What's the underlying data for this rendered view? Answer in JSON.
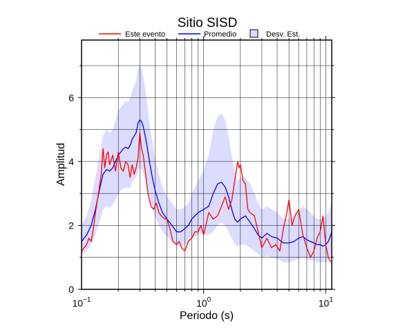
{
  "chart_data": {
    "type": "line",
    "title": "Sitio SISD",
    "xlabel": "Periodo (s)",
    "ylabel": "Amplitud",
    "x_scale": "log",
    "xlim": [
      0.1,
      11.2
    ],
    "ylim": [
      0,
      7.8
    ],
    "x_ticks": [
      {
        "value": 0.1,
        "base": "10",
        "exp": "−1"
      },
      {
        "value": 1,
        "base": "10",
        "exp": "0"
      },
      {
        "value": 10,
        "base": "10",
        "exp": "1"
      }
    ],
    "y_ticks": [
      0,
      2,
      4,
      6
    ],
    "grid": true,
    "legend": {
      "position": "top",
      "entries": [
        {
          "label": "Este evento",
          "color": "#ff0000",
          "kind": "line"
        },
        {
          "label": "Promedio",
          "color": "#0000ff",
          "kind": "line"
        },
        {
          "label": "Desv. Est.",
          "color": "#dcdcff",
          "kind": "box"
        }
      ]
    },
    "series": [
      {
        "name": "Este evento",
        "color": "#ff0000",
        "x": [
          0.1,
          0.105,
          0.11,
          0.115,
          0.12,
          0.125,
          0.13,
          0.135,
          0.14,
          0.145,
          0.15,
          0.155,
          0.16,
          0.165,
          0.17,
          0.18,
          0.19,
          0.2,
          0.21,
          0.22,
          0.23,
          0.24,
          0.25,
          0.26,
          0.27,
          0.28,
          0.29,
          0.3,
          0.31,
          0.32,
          0.33,
          0.35,
          0.37,
          0.39,
          0.41,
          0.43,
          0.45,
          0.48,
          0.5,
          0.53,
          0.56,
          0.6,
          0.63,
          0.66,
          0.7,
          0.75,
          0.8,
          0.85,
          0.9,
          0.95,
          1.0,
          1.1,
          1.2,
          1.3,
          1.4,
          1.5,
          1.6,
          1.7,
          1.8,
          1.9,
          1.95,
          2.0,
          2.1,
          2.2,
          2.3,
          2.4,
          2.6,
          2.8,
          3.0,
          3.3,
          3.6,
          3.9,
          4.2,
          4.5,
          4.8,
          5.0,
          5.3,
          5.6,
          6.0,
          6.5,
          7.0,
          7.5,
          8.0,
          8.5,
          9.0,
          9.5,
          10.0,
          10.5,
          11.0
        ],
        "y": [
          1.2,
          1.3,
          1.4,
          1.6,
          1.5,
          1.9,
          2.4,
          2.8,
          3.2,
          3.6,
          4.4,
          3.8,
          4.2,
          4.3,
          3.9,
          4.2,
          3.7,
          4.3,
          3.8,
          3.7,
          4.0,
          3.9,
          3.5,
          3.9,
          3.6,
          3.8,
          4.1,
          4.9,
          4.4,
          4.2,
          3.8,
          3.0,
          2.6,
          2.5,
          2.7,
          2.4,
          2.3,
          2.2,
          2.2,
          1.9,
          1.5,
          1.4,
          1.5,
          1.3,
          1.2,
          1.5,
          1.6,
          1.8,
          1.8,
          2.0,
          1.7,
          2.4,
          2.2,
          2.3,
          2.6,
          2.9,
          2.5,
          2.8,
          3.4,
          4.0,
          3.8,
          3.9,
          3.4,
          3.3,
          2.5,
          2.4,
          2.3,
          1.8,
          1.3,
          1.6,
          1.3,
          1.4,
          1.2,
          1.9,
          2.4,
          2.8,
          2.0,
          2.3,
          2.5,
          1.7,
          1.3,
          1.0,
          1.2,
          1.6,
          1.8,
          2.3,
          1.4,
          1.0,
          0.85
        ]
      },
      {
        "name": "Promedio",
        "color": "#0000ff",
        "x": [
          0.1,
          0.11,
          0.12,
          0.13,
          0.14,
          0.15,
          0.16,
          0.17,
          0.18,
          0.19,
          0.2,
          0.21,
          0.22,
          0.23,
          0.24,
          0.25,
          0.26,
          0.27,
          0.28,
          0.29,
          0.3,
          0.31,
          0.32,
          0.34,
          0.36,
          0.38,
          0.4,
          0.43,
          0.46,
          0.5,
          0.55,
          0.6,
          0.65,
          0.7,
          0.75,
          0.8,
          0.85,
          0.9,
          1.0,
          1.1,
          1.2,
          1.3,
          1.4,
          1.5,
          1.6,
          1.7,
          1.8,
          1.9,
          2.0,
          2.2,
          2.4,
          2.6,
          2.8,
          3.0,
          3.3,
          3.6,
          4.0,
          4.5,
          5.0,
          5.5,
          6.0,
          6.5,
          7.0,
          7.5,
          8.0,
          8.5,
          9.0,
          9.5,
          10.0,
          10.5,
          11.0,
          11.2
        ],
        "y": [
          1.5,
          1.7,
          2.0,
          2.5,
          3.1,
          3.6,
          3.75,
          3.7,
          3.8,
          4.0,
          4.2,
          4.3,
          4.4,
          4.45,
          4.4,
          4.5,
          4.7,
          4.8,
          4.9,
          5.2,
          5.3,
          5.25,
          5.1,
          4.6,
          4.0,
          3.5,
          3.1,
          2.7,
          2.4,
          2.2,
          2.0,
          1.8,
          1.8,
          1.9,
          2.0,
          2.2,
          2.3,
          2.4,
          2.5,
          2.6,
          3.0,
          3.3,
          3.35,
          3.2,
          2.9,
          2.5,
          2.2,
          2.1,
          2.2,
          2.3,
          2.1,
          1.9,
          1.7,
          1.6,
          1.75,
          1.65,
          1.6,
          1.45,
          1.45,
          1.5,
          1.6,
          1.65,
          1.55,
          1.5,
          1.45,
          1.4,
          1.4,
          1.35,
          1.4,
          1.5,
          1.7,
          1.8
        ]
      },
      {
        "name": "Desv. Est.",
        "color": "#dcdcff",
        "x": [
          0.1,
          0.11,
          0.12,
          0.13,
          0.14,
          0.15,
          0.16,
          0.17,
          0.18,
          0.19,
          0.2,
          0.21,
          0.22,
          0.23,
          0.24,
          0.25,
          0.26,
          0.27,
          0.28,
          0.29,
          0.3,
          0.31,
          0.32,
          0.34,
          0.36,
          0.38,
          0.4,
          0.43,
          0.46,
          0.5,
          0.55,
          0.6,
          0.65,
          0.7,
          0.75,
          0.8,
          0.85,
          0.9,
          1.0,
          1.1,
          1.2,
          1.3,
          1.4,
          1.5,
          1.6,
          1.7,
          1.8,
          1.9,
          2.0,
          2.2,
          2.4,
          2.6,
          2.8,
          3.0,
          3.3,
          3.6,
          4.0,
          4.5,
          5.0,
          5.5,
          6.0,
          6.5,
          7.0,
          7.5,
          8.0,
          8.5,
          9.0,
          9.5,
          10.0,
          10.5,
          11.0,
          11.2
        ],
        "upper": [
          2.0,
          2.3,
          2.8,
          3.5,
          4.2,
          4.8,
          5.0,
          4.9,
          5.0,
          5.3,
          5.6,
          5.7,
          5.8,
          5.9,
          5.85,
          6.0,
          6.2,
          6.4,
          6.5,
          6.9,
          7.0,
          6.9,
          6.7,
          6.0,
          5.2,
          4.6,
          4.1,
          3.6,
          3.2,
          2.9,
          2.7,
          2.5,
          2.5,
          2.6,
          2.7,
          3.0,
          3.2,
          3.4,
          3.7,
          4.2,
          5.0,
          5.4,
          5.5,
          5.3,
          4.8,
          4.2,
          3.7,
          3.4,
          3.5,
          3.5,
          3.3,
          3.0,
          2.7,
          2.5,
          2.6,
          2.5,
          2.4,
          2.2,
          2.2,
          2.3,
          2.5,
          2.6,
          2.5,
          2.4,
          2.3,
          2.2,
          2.2,
          2.2,
          2.3,
          2.4,
          2.6,
          2.7
        ],
        "lower": [
          1.1,
          1.2,
          1.4,
          1.7,
          2.1,
          2.5,
          2.6,
          2.55,
          2.65,
          2.8,
          3.0,
          3.1,
          3.15,
          3.2,
          3.15,
          3.2,
          3.35,
          3.45,
          3.5,
          3.7,
          3.8,
          3.75,
          3.65,
          3.3,
          2.9,
          2.55,
          2.3,
          2.0,
          1.8,
          1.65,
          1.5,
          1.35,
          1.35,
          1.4,
          1.45,
          1.6,
          1.65,
          1.7,
          1.75,
          1.7,
          1.8,
          2.0,
          2.1,
          2.0,
          1.8,
          1.6,
          1.4,
          1.35,
          1.4,
          1.4,
          1.3,
          1.2,
          1.1,
          1.0,
          1.05,
          1.0,
          0.95,
          0.85,
          0.85,
          0.9,
          0.95,
          1.0,
          0.95,
          0.9,
          0.9,
          0.85,
          0.85,
          0.85,
          0.85,
          0.9,
          1.0,
          1.05
        ]
      }
    ]
  }
}
